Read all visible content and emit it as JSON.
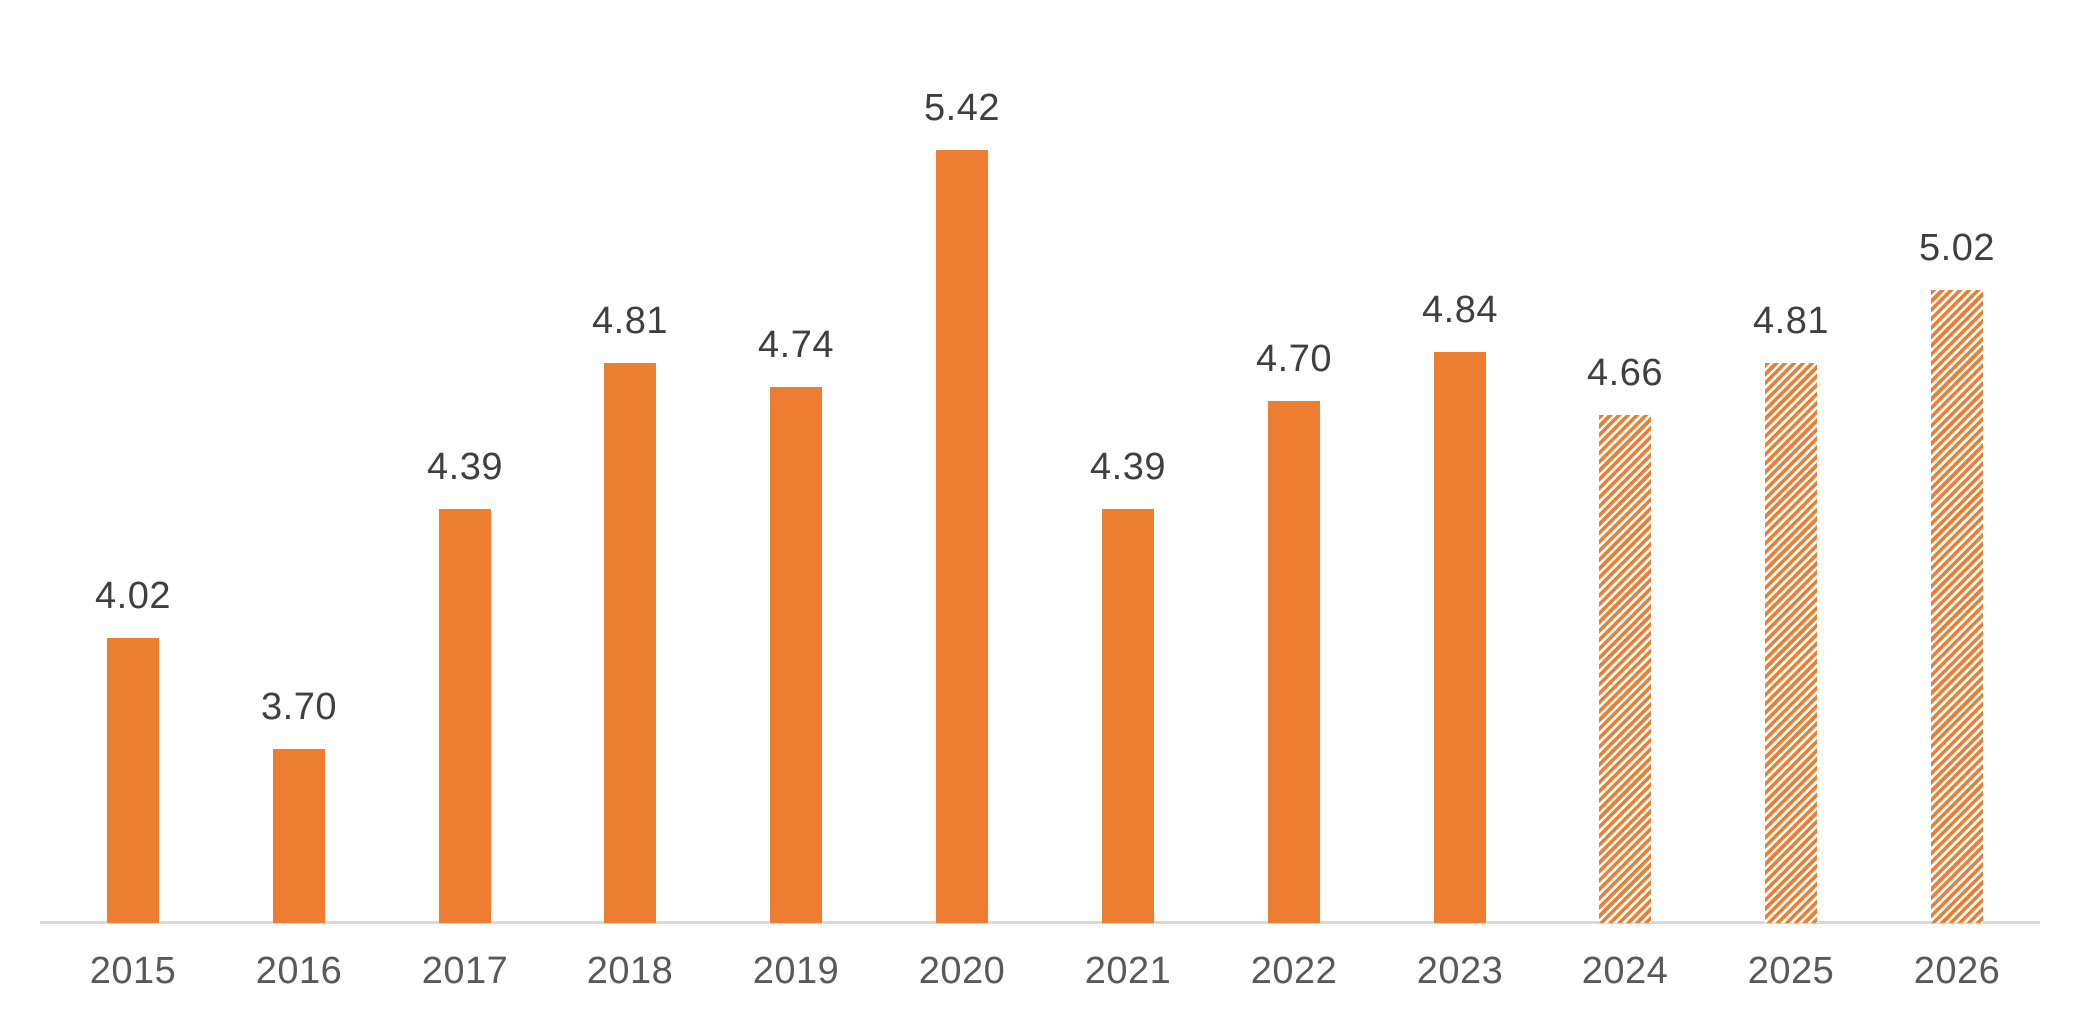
{
  "chart_data": {
    "type": "bar",
    "title": "",
    "xlabel": "",
    "ylabel": "",
    "categories": [
      "2015",
      "2016",
      "2017",
      "2018",
      "2019",
      "2020",
      "2021",
      "2022",
      "2023",
      "2024",
      "2025",
      "2026"
    ],
    "series": [
      {
        "name": "value",
        "values": [
          4.02,
          3.7,
          4.39,
          4.81,
          4.74,
          5.42,
          4.39,
          4.7,
          4.84,
          4.66,
          4.81,
          5.02
        ]
      }
    ],
    "value_labels": [
      "4.02",
      "3.70",
      "4.39",
      "4.81",
      "4.74",
      "5.42",
      "4.39",
      "4.70",
      "4.84",
      "4.66",
      "4.81",
      "5.02"
    ],
    "forecast_start_index": 9,
    "forecast_categories": [
      "2024",
      "2025",
      "2026"
    ],
    "forecast_style": "diagonal-hatch",
    "bar_color": "#ED7D31",
    "hatch_background": "#FFFFFF",
    "value_label_color": "#3F3F3F",
    "axis_label_color": "#595959",
    "axis_line_color": "#D9D9D9",
    "ylim": [
      3.2,
      6.0
    ],
    "grid": false,
    "legend": false,
    "yaxis_visible": false
  }
}
